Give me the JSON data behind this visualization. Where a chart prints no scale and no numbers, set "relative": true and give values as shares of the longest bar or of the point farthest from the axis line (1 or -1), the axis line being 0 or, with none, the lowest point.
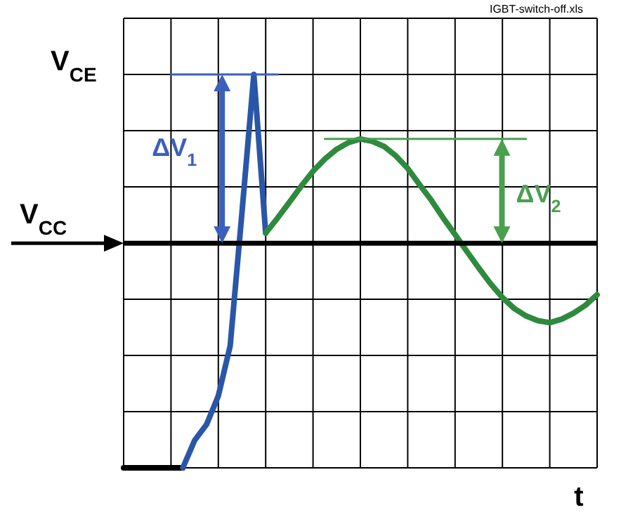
{
  "chart_data": {
    "type": "line",
    "relative": true,
    "xlabel": "t",
    "ylabel": "V$_{CE}$",
    "grid": true,
    "categories": [
      null,
      null,
      null,
      null,
      null,
      null,
      null,
      null,
      null,
      null,
      null,
      null,
      null,
      null,
      null,
      null,
      null,
      null,
      null,
      null,
      null,
      null,
      null,
      null,
      null,
      null,
      null,
      null,
      null,
      null,
      null,
      null,
      null,
      null,
      null,
      null,
      null,
      null,
      null,
      null,
      null
    ],
    "series": [
      {
        "color": "#000000",
        "values": [
          0,
          0,
          0,
          0,
          0,
          0,
          null,
          null,
          null,
          null,
          null,
          null,
          null,
          null,
          null,
          null,
          null,
          null,
          null,
          null,
          null,
          null,
          null,
          null,
          null,
          null,
          null,
          null,
          null,
          null,
          null,
          null,
          null,
          null,
          null,
          null,
          null,
          null,
          null,
          null,
          null
        ]
      },
      {
        "color": "#2a56a8",
        "values": [
          null,
          null,
          null,
          null,
          null,
          0,
          0.07,
          0.11,
          0.183,
          0.31,
          0.65,
          1,
          0.597,
          null,
          null,
          null,
          null,
          null,
          null,
          null,
          null,
          null,
          null,
          null,
          null,
          null,
          null,
          null,
          null,
          null,
          null,
          null,
          null,
          null,
          null,
          null,
          null,
          null,
          null,
          null,
          null
        ]
      },
      {
        "color": "#2e8b3e",
        "values": [
          null,
          null,
          null,
          null,
          null,
          null,
          null,
          null,
          null,
          null,
          null,
          null,
          0.597,
          0.635,
          0.675,
          0.716,
          0.754,
          0.785,
          0.81,
          0.827,
          0.836,
          0.83,
          0.817,
          0.793,
          0.761,
          0.72,
          0.68,
          0.635,
          0.593,
          0.55,
          0.508,
          0.468,
          0.433,
          0.405,
          0.386,
          0.374,
          0.369,
          0.378,
          0.393,
          0.413,
          0.44
        ]
      },
      {
        "color": "#3a5fbf",
        "values": [
          null,
          null,
          null,
          null,
          1,
          1,
          1,
          1,
          1,
          1,
          1,
          1,
          1,
          1,
          null,
          null,
          null,
          null,
          null,
          null,
          null,
          null,
          null,
          null,
          null,
          null,
          null,
          null,
          null,
          null,
          null,
          null,
          null,
          null,
          null,
          null,
          null,
          null,
          null,
          null,
          null
        ]
      },
      {
        "color": "#4aa050",
        "values": [
          null,
          null,
          null,
          null,
          null,
          null,
          null,
          null,
          null,
          null,
          null,
          null,
          null,
          null,
          null,
          null,
          null,
          0.836,
          0.836,
          0.836,
          0.836,
          0.836,
          0.836,
          0.836,
          0.836,
          0.836,
          0.836,
          0.836,
          0.836,
          0.836,
          0.836,
          0.836,
          0.836,
          0.836,
          0.836,
          null,
          null,
          null,
          null,
          null,
          null
        ]
      }
    ],
    "ref_lines": [
      {
        "axis": "y",
        "value": 0.571,
        "label": "V$_{CC}$",
        "color": "#000000"
      }
    ],
    "annotations": [
      "ΔV$_{1}$",
      "ΔV$_{2}$",
      "IGBT-switch-off.xls"
    ]
  }
}
